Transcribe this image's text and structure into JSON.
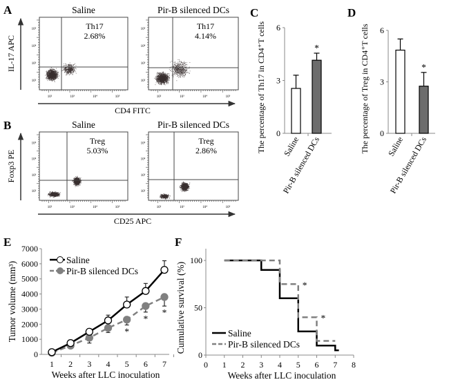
{
  "panels": {
    "A": "A",
    "B": "B",
    "C": "C",
    "D": "D",
    "E": "E",
    "F": "F"
  },
  "flow": {
    "A": {
      "y_label": "IL-17 APC",
      "x_label": "CD4 FITC",
      "plots": [
        {
          "title": "Saline",
          "gate": "Th17",
          "percent": "2.68%"
        },
        {
          "title": "Pir-B silenced DCs",
          "gate": "Th17",
          "percent": "4.14%"
        }
      ]
    },
    "B": {
      "y_label": "Foxp3 PE",
      "x_label": "CD25 APC",
      "plots": [
        {
          "title": "Saline",
          "gate": "Treg",
          "percent": "5.03%"
        },
        {
          "title": "Pir-B silenced DCs",
          "gate": "Treg",
          "percent": "2.86%"
        }
      ]
    },
    "axis_ticks": [
      "10²",
      "10³",
      "10⁴",
      "10⁵"
    ],
    "dot_color": "#3a3030"
  },
  "chart_data": [
    {
      "id": "C",
      "type": "bar",
      "categories": [
        "Saline",
        "Pir-B silenced DCs"
      ],
      "values": [
        2.55,
        4.15
      ],
      "error_upper": [
        3.3,
        4.55
      ],
      "colors": [
        "#ffffff",
        "#6d6d6d"
      ],
      "significance": [
        "",
        "*"
      ],
      "ylabel": "The percentage of Th17 in CD4⁺T cells",
      "ylim": [
        0,
        6
      ],
      "yticks": [
        "0",
        "3",
        "6"
      ]
    },
    {
      "id": "D",
      "type": "bar",
      "categories": [
        "Saline",
        "Pir-B silenced DCs"
      ],
      "values": [
        4.85,
        2.75
      ],
      "error_upper": [
        5.5,
        3.55
      ],
      "colors": [
        "#ffffff",
        "#6d6d6d"
      ],
      "significance": [
        "",
        "*"
      ],
      "ylabel": "The percentage of Treg in CD4⁺T cells",
      "ylim": [
        0,
        6
      ],
      "yticks": [
        "0",
        "3",
        "6"
      ]
    },
    {
      "id": "E",
      "type": "line",
      "x": [
        1,
        2,
        3,
        4,
        5,
        6,
        7
      ],
      "xticks": [
        "1",
        "2",
        "3",
        "4",
        "5",
        "6",
        "7"
      ],
      "ylim": [
        0,
        7000
      ],
      "yticks": [
        "0",
        "1000",
        "2000",
        "3000",
        "4000",
        "5000",
        "6000",
        "7000"
      ],
      "ylabel": "Tumor volume (mm³)",
      "xlabel": "Weeks after LLC inoculation",
      "legend": "top-left",
      "series": [
        {
          "name": "Saline",
          "values": [
            150,
            750,
            1500,
            2250,
            3300,
            4200,
            5600
          ],
          "error": [
            100,
            200,
            200,
            350,
            500,
            500,
            600
          ],
          "color": "#000000",
          "style": "solid",
          "marker": "open-circle"
        },
        {
          "name": "Pir-B silenced DCs",
          "values": [
            100,
            580,
            1100,
            1750,
            2300,
            3200,
            3800
          ],
          "error": [
            80,
            150,
            350,
            300,
            350,
            400,
            600
          ],
          "color": "#808080",
          "style": "dashed",
          "marker": "filled-circle",
          "significance": [
            "",
            "",
            "",
            "",
            "*",
            "*",
            "*"
          ]
        }
      ]
    },
    {
      "id": "F",
      "type": "line",
      "subtype": "step",
      "xlim": [
        0,
        8
      ],
      "xticks": [
        "0",
        "1",
        "2",
        "3",
        "4",
        "5",
        "6",
        "7",
        "8"
      ],
      "ylim": [
        0,
        100
      ],
      "yticks": [
        "0",
        "50",
        "100"
      ],
      "ylabel": "Cumulative survival (%)",
      "xlabel": "Weeks after LLC inoculation",
      "legend": "bottom-left",
      "series": [
        {
          "name": "Saline",
          "color": "#000000",
          "style": "solid",
          "steps": [
            [
              1,
              100
            ],
            [
              3,
              90
            ],
            [
              4,
              60
            ],
            [
              5,
              25
            ],
            [
              6,
              10
            ],
            [
              7,
              5
            ],
            [
              7.2,
              5
            ]
          ]
        },
        {
          "name": "Pir-B silenced DCs",
          "color": "#808080",
          "style": "dashed",
          "steps": [
            [
              1,
              100
            ],
            [
              4,
              75
            ],
            [
              5,
              40
            ],
            [
              6,
              15
            ],
            [
              7,
              15
            ]
          ]
        }
      ],
      "annotations": [
        {
          "x": 5,
          "y": 75,
          "text": "*"
        },
        {
          "x": 6,
          "y": 40,
          "text": "*"
        }
      ]
    }
  ]
}
